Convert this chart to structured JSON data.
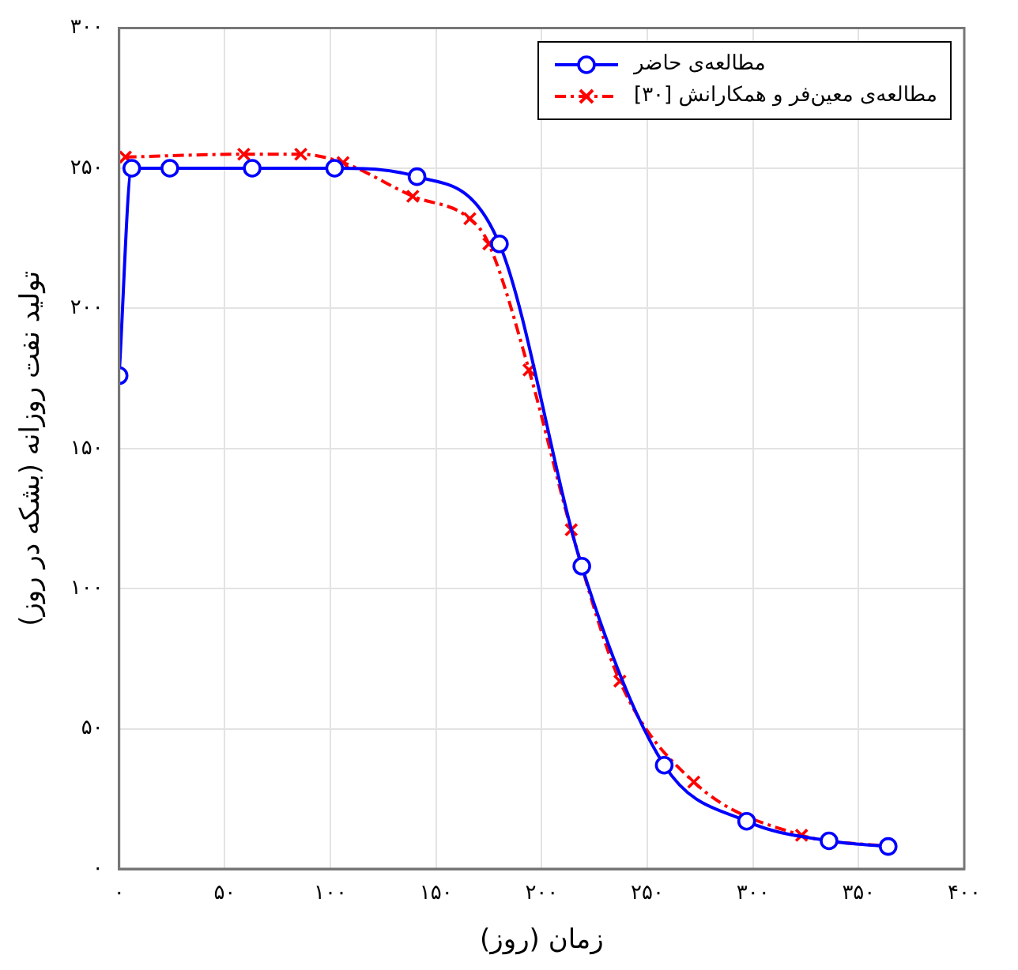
{
  "chart_data": {
    "type": "line",
    "xlabel": "زمان (روز)",
    "ylabel": "تولید نفت روزانه (بشکه در روز)",
    "xlim": [
      0,
      400
    ],
    "xticks": [
      {
        "value": 0,
        "label": "۰"
      },
      {
        "value": 50,
        "label": "۵۰"
      },
      {
        "value": 100,
        "label": "۱۰۰"
      },
      {
        "value": 150,
        "label": "۱۵۰"
      },
      {
        "value": 200,
        "label": "۲۰۰"
      },
      {
        "value": 250,
        "label": "۲۵۰"
      },
      {
        "value": 300,
        "label": "۳۰۰"
      },
      {
        "value": 350,
        "label": "۳۵۰"
      },
      {
        "value": 400,
        "label": "۴۰۰"
      }
    ],
    "ylim": [
      0,
      300
    ],
    "yticks": [
      {
        "value": 0,
        "label": "۰"
      },
      {
        "value": 50,
        "label": "۵۰"
      },
      {
        "value": 100,
        "label": "۱۰۰"
      },
      {
        "value": 150,
        "label": "۱۵۰"
      },
      {
        "value": 200,
        "label": "۲۰۰"
      },
      {
        "value": 250,
        "label": "۲۵۰"
      },
      {
        "value": 300,
        "label": "۳۰۰"
      }
    ],
    "grid": true,
    "legend": "top right",
    "series": [
      {
        "name": "مطالعه‌ی حاضر",
        "color": "#0000ff",
        "marker": "circle",
        "line_style": "solid",
        "x": [
          0,
          6,
          24,
          63,
          102,
          141,
          180,
          219,
          258,
          297,
          336,
          364
        ],
        "values": [
          176,
          250,
          250,
          250,
          250,
          247,
          223,
          108,
          37,
          17,
          10,
          8
        ]
      },
      {
        "name": "مطالعه‌ی معین‌فر و همکارانش [۳۰]",
        "color": "#ff0000",
        "marker": "cross",
        "line_style": "dashed",
        "x": [
          3,
          59,
          86,
          106,
          139,
          166,
          175,
          194,
          214,
          237,
          272,
          323,
          364
        ],
        "values": [
          254,
          255,
          255,
          252,
          240,
          232,
          223,
          178,
          121,
          67,
          31,
          12,
          8
        ]
      }
    ]
  }
}
